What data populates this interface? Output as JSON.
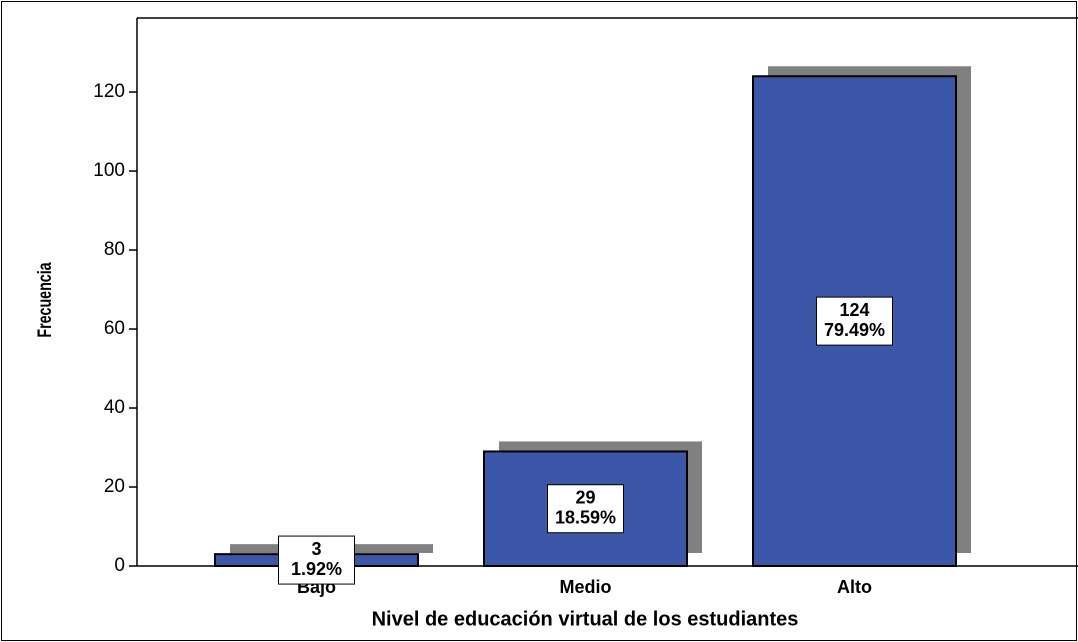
{
  "chart_data": {
    "type": "bar",
    "x_label": "Nivel de educación virtual de los estudiantes",
    "y_label": "Frecuencia",
    "categories": [
      "Bajo",
      "Medio",
      "Alto"
    ],
    "values": [
      3,
      29,
      124
    ],
    "percent_labels": [
      "1.92%",
      "18.59%",
      "79.49%"
    ],
    "color": "#3d57a8",
    "shadow_color": "#808080",
    "ylim": [
      0,
      139
    ],
    "yticks": [
      0,
      20,
      40,
      60,
      80,
      100,
      120
    ],
    "grid": false
  }
}
